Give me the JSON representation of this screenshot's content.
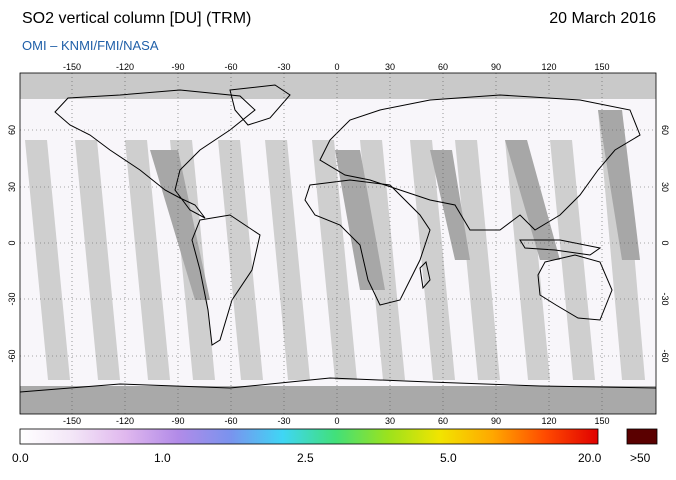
{
  "header": {
    "title": "SO2 vertical column [DU] (TRM)",
    "date": "20 March 2016",
    "subtitle": "OMI  –  KNMI/FMI/NASA"
  },
  "map": {
    "lon_ticks": [
      "-150",
      "-120",
      "-90",
      "-60",
      "-30",
      "0",
      "30",
      "60",
      "90",
      "120",
      "150"
    ],
    "lat_ticks": [
      "60",
      "30",
      "0",
      "-30",
      "-60"
    ]
  },
  "colorbar": {
    "labels": [
      "0.0",
      "1.0",
      "2.5",
      "5.0",
      "20.0"
    ],
    "overflow_label": ">50",
    "colors": [
      "#ffffff",
      "#f3e6f7",
      "#e0b8ee",
      "#b28be8",
      "#7a93ee",
      "#3fd6f5",
      "#41e07a",
      "#9be21d",
      "#f2e400",
      "#ffa700",
      "#ff4a00",
      "#e00000"
    ],
    "overflow_color": "#5a0000"
  }
}
